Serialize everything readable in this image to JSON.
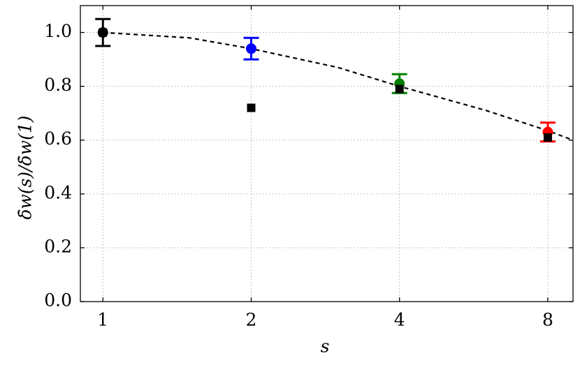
{
  "chart_data": {
    "type": "scatter",
    "x_label": "s",
    "y_label": "δ̇w(s)/δ̇w(1)",
    "xscale": "log",
    "xlim": [
      0.9,
      9
    ],
    "ylim": [
      0,
      1.1
    ],
    "xticks": [
      1,
      2,
      4,
      8
    ],
    "yticks": [
      {
        "value": 0,
        "label": "0.0"
      },
      0.2,
      0.4,
      0.6,
      0.8,
      {
        "value": 1,
        "label": "1.0"
      }
    ],
    "grid": true,
    "series": [
      {
        "color": "#000000",
        "line": "dashed",
        "x": [
          1,
          1.5,
          2,
          3,
          4,
          6,
          8,
          9
        ],
        "values": [
          1.0,
          0.98,
          0.94,
          0.87,
          0.8,
          0.71,
          0.635,
          0.6
        ]
      },
      {
        "color": "#000000",
        "marker": "circle",
        "x": [
          1
        ],
        "values": [
          1.0
        ],
        "errors": [
          0.05
        ]
      },
      {
        "color": "#0000ff",
        "marker": "circle",
        "x": [
          2
        ],
        "values": [
          0.94
        ],
        "errors": [
          0.04
        ]
      },
      {
        "color": "#008000",
        "marker": "circle",
        "x": [
          4
        ],
        "values": [
          0.81
        ],
        "errors": [
          0.035
        ]
      },
      {
        "color": "#ff0000",
        "marker": "circle",
        "x": [
          8
        ],
        "values": [
          0.63
        ],
        "errors": [
          0.035
        ]
      },
      {
        "color": "#000000",
        "marker": "square",
        "x": [
          1,
          2,
          4,
          8
        ],
        "values": [
          1.0,
          0.72,
          0.79,
          0.61
        ]
      }
    ]
  }
}
